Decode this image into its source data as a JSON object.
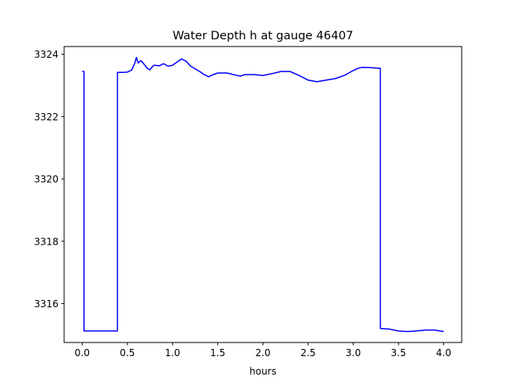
{
  "chart_data": {
    "type": "line",
    "title": "Water Depth h at gauge 46407",
    "xlabel": "hours",
    "ylabel": "",
    "xlim": [
      -0.2,
      4.2
    ],
    "ylim": [
      3314.75,
      3324.25
    ],
    "xticks": [
      0.0,
      0.5,
      1.0,
      1.5,
      2.0,
      2.5,
      3.0,
      3.5,
      4.0
    ],
    "xtick_labels": [
      "0.0",
      "0.5",
      "1.0",
      "1.5",
      "2.0",
      "2.5",
      "3.0",
      "3.5",
      "4.0"
    ],
    "yticks": [
      3316,
      3318,
      3320,
      3322,
      3324
    ],
    "ytick_labels": [
      "3316",
      "3318",
      "3320",
      "3322",
      "3324"
    ],
    "grid": false,
    "series": [
      {
        "color": "#0000ff",
        "x": [
          0.0,
          0.02,
          0.02,
          0.1,
          0.2,
          0.3,
          0.39,
          0.39,
          0.45,
          0.5,
          0.55,
          0.58,
          0.6,
          0.62,
          0.65,
          0.68,
          0.72,
          0.75,
          0.78,
          0.8,
          0.85,
          0.9,
          0.95,
          1.0,
          1.05,
          1.1,
          1.15,
          1.2,
          1.3,
          1.35,
          1.4,
          1.45,
          1.5,
          1.6,
          1.7,
          1.75,
          1.8,
          1.9,
          2.0,
          2.1,
          2.2,
          2.3,
          2.4,
          2.5,
          2.6,
          2.7,
          2.8,
          2.9,
          3.0,
          3.05,
          3.1,
          3.2,
          3.3,
          3.3,
          3.4,
          3.5,
          3.6,
          3.7,
          3.8,
          3.9,
          4.0
        ],
        "y": [
          3323.45,
          3323.45,
          3315.12,
          3315.12,
          3315.12,
          3315.12,
          3315.12,
          3323.42,
          3323.42,
          3323.43,
          3323.5,
          3323.7,
          3323.9,
          3323.72,
          3323.8,
          3323.7,
          3323.55,
          3323.5,
          3323.62,
          3323.65,
          3323.63,
          3323.7,
          3323.62,
          3323.65,
          3323.75,
          3323.85,
          3323.78,
          3323.62,
          3323.45,
          3323.35,
          3323.28,
          3323.35,
          3323.4,
          3323.4,
          3323.33,
          3323.3,
          3323.35,
          3323.35,
          3323.32,
          3323.38,
          3323.45,
          3323.45,
          3323.32,
          3323.17,
          3323.12,
          3323.17,
          3323.22,
          3323.32,
          3323.48,
          3323.55,
          3323.58,
          3323.57,
          3323.55,
          3315.2,
          3315.18,
          3315.12,
          3315.1,
          3315.12,
          3315.15,
          3315.15,
          3315.1
        ]
      }
    ]
  }
}
